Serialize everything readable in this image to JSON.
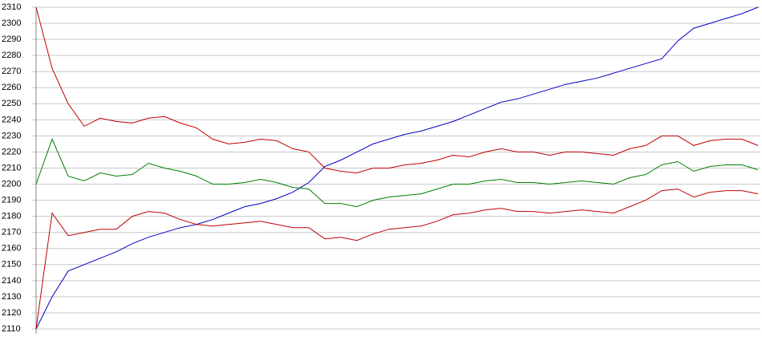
{
  "chart_data": {
    "type": "line",
    "categories": [
      null,
      null,
      null,
      null,
      null,
      null,
      null,
      null,
      null,
      null,
      null,
      null,
      null,
      null,
      null,
      null,
      null,
      null,
      null,
      null,
      null,
      null,
      null,
      null,
      null,
      null,
      null,
      null,
      null,
      null,
      null,
      null,
      null,
      null,
      null,
      null,
      null,
      null,
      null,
      null,
      null,
      null,
      null,
      null,
      null,
      null
    ],
    "series": [
      {
        "color": "#0000c0",
        "values": [
          2110,
          2130,
          2146,
          2150,
          2154,
          2158,
          2163,
          2167,
          2170,
          2173,
          2175,
          2178,
          2182,
          2186,
          2188,
          2191,
          2195,
          2201,
          2211,
          2215,
          2220,
          2225,
          2228,
          2231,
          2233,
          2236,
          2239,
          2243,
          2247,
          2251,
          2253,
          2256,
          2259,
          2262,
          2264,
          2266,
          2269,
          2272,
          2275,
          2278,
          2289,
          2297,
          2300,
          2303,
          2306,
          2310
        ]
      },
      {
        "color": "#c00000",
        "values": [
          2310,
          2272,
          2250,
          2236,
          2241,
          2239,
          2238,
          2241,
          2242,
          2238,
          2235,
          2228,
          2225,
          2226,
          2228,
          2227,
          2222,
          2220,
          2210,
          2208,
          2207,
          2210,
          2210,
          2212,
          2213,
          2215,
          2218,
          2217,
          2220,
          2222,
          2220,
          2220,
          2218,
          2220,
          2220,
          2219,
          2218,
          2222,
          2224,
          2230,
          2230,
          2224,
          2227,
          2228,
          2228,
          2224
        ]
      },
      {
        "color": "#008000",
        "values": [
          2200,
          2228,
          2205,
          2202,
          2207,
          2205,
          2206,
          2213,
          2210,
          2208,
          2205,
          2200,
          2200,
          2201,
          2203,
          2201,
          2198,
          2197,
          2188,
          2188,
          2186,
          2190,
          2192,
          2193,
          2194,
          2197,
          2200,
          2200,
          2202,
          2203,
          2201,
          2201,
          2200,
          2201,
          2202,
          2201,
          2200,
          2204,
          2206,
          2212,
          2214,
          2208,
          2211,
          2212,
          2212,
          2209
        ]
      },
      {
        "color": "#c00000",
        "values": [
          2110,
          2182,
          2168,
          2170,
          2172,
          2172,
          2180,
          2183,
          2182,
          2178,
          2175,
          2174,
          2175,
          2176,
          2177,
          2175,
          2173,
          2173,
          2166,
          2167,
          2165,
          2169,
          2172,
          2173,
          2174,
          2177,
          2181,
          2182,
          2184,
          2185,
          2183,
          2183,
          2182,
          2183,
          2184,
          2183,
          2182,
          2186,
          2190,
          2196,
          2197,
          2192,
          2195,
          2196,
          2196,
          2194
        ]
      }
    ],
    "ylim": [
      2110,
      2310
    ],
    "yticks": [
      2110,
      2120,
      2130,
      2140,
      2150,
      2160,
      2170,
      2180,
      2190,
      2200,
      2210,
      2220,
      2230,
      2240,
      2250,
      2260,
      2270,
      2280,
      2290,
      2300,
      2310
    ],
    "grid": true
  }
}
